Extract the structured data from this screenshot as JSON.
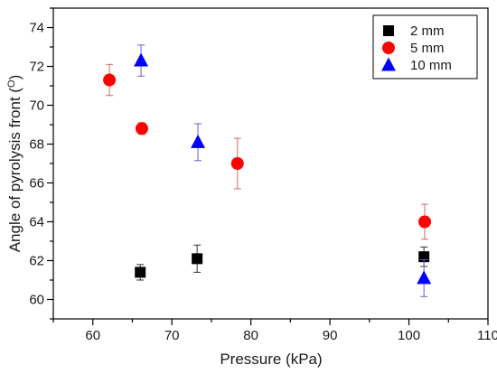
{
  "chart_data": {
    "type": "scatter",
    "xlabel": "Pressure (kPa)",
    "ylabel": "Angle of pyrolysis front (O)",
    "xlim": [
      55,
      110
    ],
    "ylim": [
      59,
      75
    ],
    "x_ticks": [
      60,
      70,
      80,
      90,
      100,
      110
    ],
    "y_ticks": [
      60,
      62,
      64,
      66,
      68,
      70,
      72,
      74
    ],
    "grid": false,
    "legend_position": "top-right",
    "series": [
      {
        "name": "2 mm",
        "marker": "square",
        "color": "#000000",
        "error_color": "#333333",
        "points": [
          {
            "x": 66.0,
            "y": 61.4,
            "err": 0.4
          },
          {
            "x": 73.2,
            "y": 62.1,
            "err": 0.7
          },
          {
            "x": 101.9,
            "y": 62.2,
            "err": 0.5
          }
        ]
      },
      {
        "name": "5 mm",
        "marker": "circle",
        "color": "#ff0000",
        "error_color": "#e06060",
        "points": [
          {
            "x": 62.1,
            "y": 71.3,
            "err": 0.8
          },
          {
            "x": 66.2,
            "y": 68.8,
            "err": 0.3
          },
          {
            "x": 78.3,
            "y": 67.0,
            "err": 1.3
          },
          {
            "x": 102.0,
            "y": 64.0,
            "err": 0.9
          }
        ]
      },
      {
        "name": "10 mm",
        "marker": "triangle",
        "color": "#0000ff",
        "error_color": "#6060d0",
        "points": [
          {
            "x": 66.1,
            "y": 72.3,
            "err": 0.8
          },
          {
            "x": 73.3,
            "y": 68.1,
            "err": 0.95
          },
          {
            "x": 101.9,
            "y": 61.1,
            "err": 0.95
          }
        ]
      }
    ]
  }
}
